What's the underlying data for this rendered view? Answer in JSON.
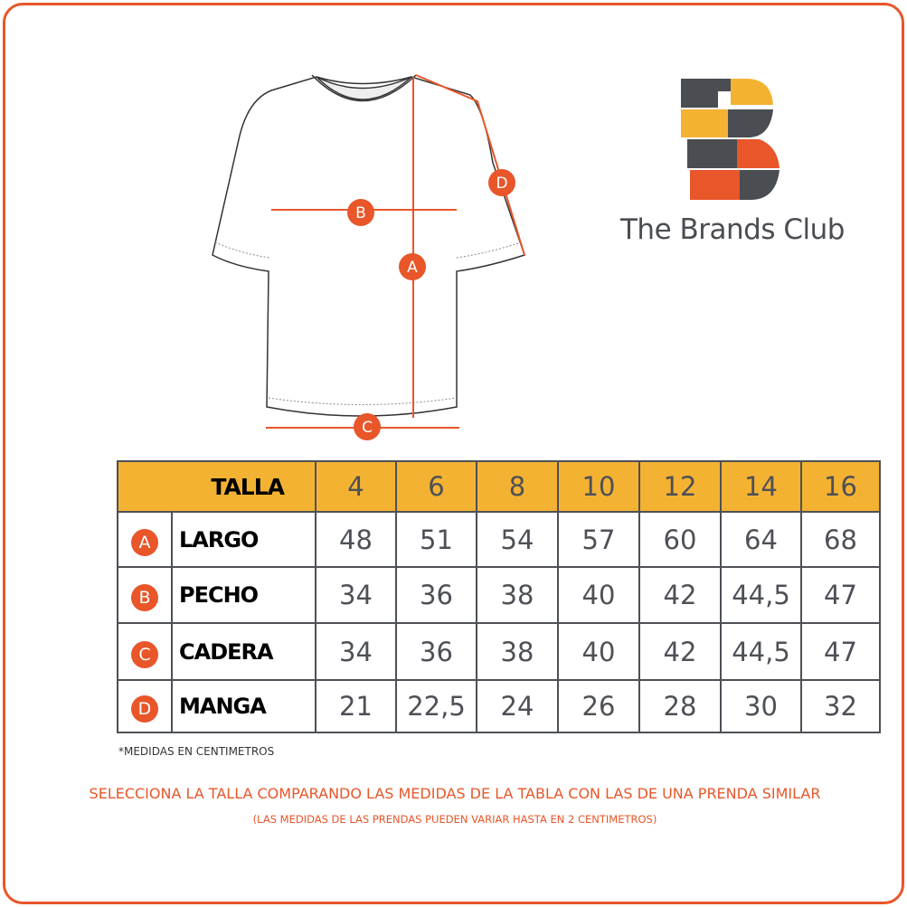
{
  "brand": {
    "name": "The Brands Club",
    "colors": {
      "orange": "#e8562a",
      "yellow": "#f4b233",
      "gray": "#4a4d52"
    }
  },
  "diagram": {
    "markers": [
      "A",
      "B",
      "C",
      "D"
    ]
  },
  "table": {
    "header_label": "TALLA",
    "sizes": [
      "4",
      "6",
      "8",
      "10",
      "12",
      "14",
      "16"
    ],
    "rows": [
      {
        "marker": "A",
        "name": "LARGO",
        "values": [
          "48",
          "51",
          "54",
          "57",
          "60",
          "64",
          "68"
        ]
      },
      {
        "marker": "B",
        "name": "PECHO",
        "values": [
          "34",
          "36",
          "38",
          "40",
          "42",
          "44,5",
          "47"
        ]
      },
      {
        "marker": "C",
        "name": "CADERA",
        "values": [
          "34",
          "36",
          "38",
          "40",
          "42",
          "44,5",
          "47"
        ]
      },
      {
        "marker": "D",
        "name": "MANGA",
        "values": [
          "21",
          "22,5",
          "24",
          "26",
          "28",
          "30",
          "32"
        ]
      }
    ]
  },
  "note": "*MEDIDAS EN CENTIMETROS",
  "message": "SELECCIONA LA TALLA COMPARANDO LAS MEDIDAS DE LA TABLA CON LAS DE UNA PRENDA SIMILAR",
  "submessage": "(LAS MEDIDAS DE LAS PRENDAS PUEDEN VARIAR HASTA EN 2 CENTIMETROS)"
}
